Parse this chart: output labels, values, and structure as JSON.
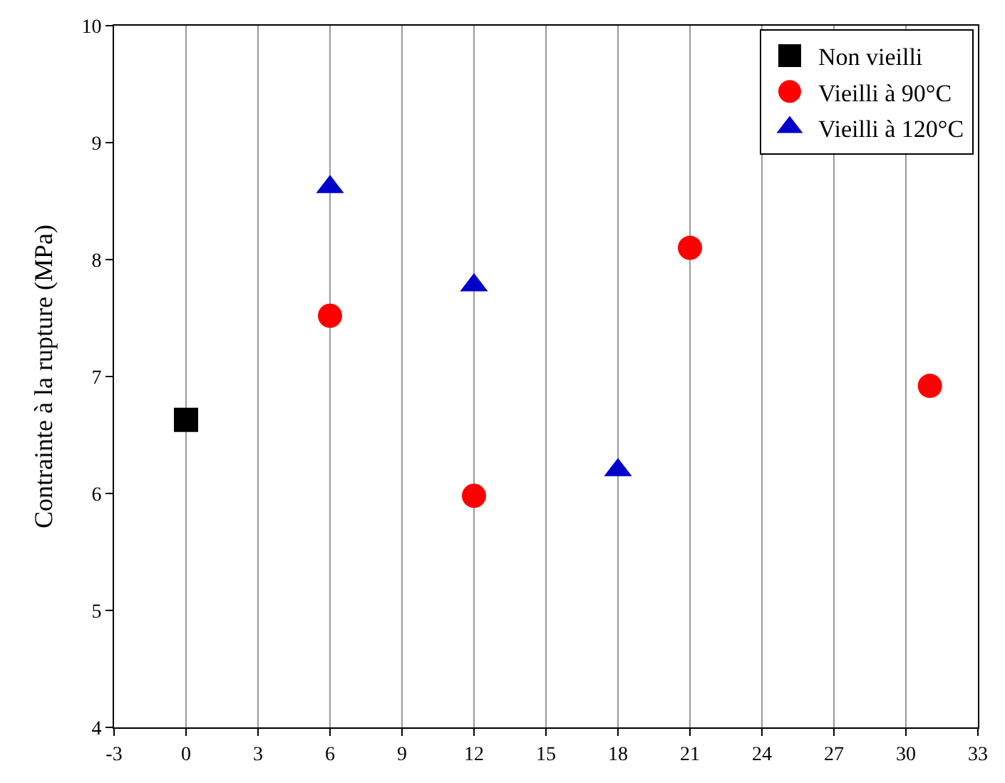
{
  "chart_data": {
    "type": "scatter",
    "ylabel": "Contrainte à la rupture (MPa)",
    "xlim": [
      -3,
      33
    ],
    "xticks": [
      -3,
      0,
      3,
      6,
      9,
      12,
      15,
      18,
      21,
      24,
      27,
      30,
      33
    ],
    "ylim": [
      4,
      10
    ],
    "yticks": [
      4,
      5,
      6,
      7,
      8,
      9,
      10
    ],
    "grid": "x",
    "legend": "top right",
    "series": [
      {
        "name": "Non vieilli",
        "color": "#000000",
        "marker": "square",
        "x": [
          0
        ],
        "values": [
          6.63
        ]
      },
      {
        "name": "Vieilli à 90°C",
        "color": "#ff0000",
        "marker": "circle",
        "x": [
          6,
          12,
          21,
          31
        ],
        "values": [
          7.52,
          5.98,
          8.1,
          6.92
        ]
      },
      {
        "name": "Vieilli à 120°C",
        "color": "#0000cc",
        "marker": "triangle",
        "x": [
          6,
          12,
          18
        ],
        "values": [
          8.62,
          7.78,
          6.2
        ]
      }
    ]
  }
}
